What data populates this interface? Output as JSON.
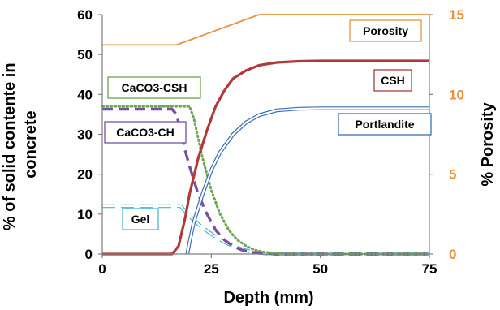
{
  "chart_data": {
    "type": "line",
    "title": "",
    "xlabel": "Depth (mm)",
    "ylabel": "% of solid contente in concrete",
    "ylabel_right": "% Porosity",
    "xlim": [
      0,
      75
    ],
    "ylim": [
      0,
      60
    ],
    "ylim_right": [
      0,
      15
    ],
    "x_ticks": [
      "0",
      "25",
      "50",
      "75"
    ],
    "y_ticks": [
      "0",
      "10",
      "20",
      "30",
      "40",
      "50",
      "60"
    ],
    "y_ticks_right": [
      "0",
      "5",
      "10",
      "15"
    ],
    "grid": false,
    "series": [
      {
        "name": "Porosity",
        "axis": "right",
        "color": "#e8913f",
        "style": "solid",
        "x": [
          0,
          17,
          36,
          75
        ],
        "y": [
          13.1,
          13.1,
          15.0,
          15.0
        ]
      },
      {
        "name": "CSH",
        "axis": "left",
        "color": "#b03a3a",
        "style": "solid-thick",
        "x": [
          0,
          16,
          17.5,
          19,
          20,
          22,
          24,
          26,
          28,
          30,
          33,
          36,
          40,
          45,
          50,
          60,
          75
        ],
        "y": [
          0,
          0,
          2,
          9,
          15,
          24,
          31,
          37,
          41,
          44,
          46,
          47.3,
          48,
          48.3,
          48.4,
          48.4,
          48.4
        ]
      },
      {
        "name": "Portlandite",
        "axis": "left",
        "color": "#3b6fb6",
        "style": "double",
        "x": [
          19.5,
          20,
          21,
          23,
          25,
          27,
          30,
          33,
          36,
          40,
          45,
          50,
          60,
          75
        ],
        "y": [
          0,
          3,
          8,
          15,
          21,
          25.5,
          30,
          33,
          34.8,
          36,
          36.4,
          36.5,
          36.5,
          36.5
        ]
      },
      {
        "name": "CaCO3-CSH",
        "axis": "left",
        "color": "#6aa84f",
        "style": "dotted",
        "x": [
          0,
          20,
          21,
          22,
          23,
          25,
          27,
          29,
          31,
          33,
          35,
          37,
          40,
          45,
          75
        ],
        "y": [
          37,
          37,
          34,
          29,
          24,
          16,
          10,
          6,
          3.5,
          2,
          1,
          0.5,
          0.2,
          0,
          0
        ]
      },
      {
        "name": "CaCO3-CH",
        "axis": "left",
        "color": "#7a4fa3",
        "style": "dashed-thick",
        "x": [
          0,
          16,
          17,
          18,
          19,
          20,
          22,
          24,
          26,
          28,
          30,
          32,
          34,
          36,
          38,
          40,
          45,
          75
        ],
        "y": [
          36.3,
          36.3,
          35,
          31,
          26,
          22,
          15,
          10,
          6,
          3.5,
          2,
          1,
          0.5,
          0.2,
          0.1,
          0,
          0,
          0
        ]
      },
      {
        "name": "Gel",
        "axis": "left",
        "color": "#4db6d0",
        "style": "dashed-double",
        "x": [
          0,
          18,
          20,
          22,
          24,
          26,
          28,
          30,
          32,
          34,
          36,
          38,
          42,
          75
        ],
        "y": [
          12,
          12,
          9.5,
          7.5,
          5.8,
          4.3,
          3.0,
          2.0,
          1.2,
          0.6,
          0.3,
          0.1,
          0,
          0
        ]
      }
    ],
    "labels": [
      {
        "text": "Porosity",
        "color": "#e8913f"
      },
      {
        "text": "CSH",
        "color": "#b03a3a"
      },
      {
        "text": "CaCO3-CSH",
        "color": "#6aa84f"
      },
      {
        "text": "Portlandite",
        "color": "#3b6fb6"
      },
      {
        "text": "CaCO3-CH",
        "color": "#7a4fa3"
      },
      {
        "text": "Gel",
        "color": "#4db6d0"
      }
    ],
    "colors": {
      "axis": "#7f7f7f",
      "left_text": "#000000",
      "right_text": "#e8913f"
    }
  }
}
